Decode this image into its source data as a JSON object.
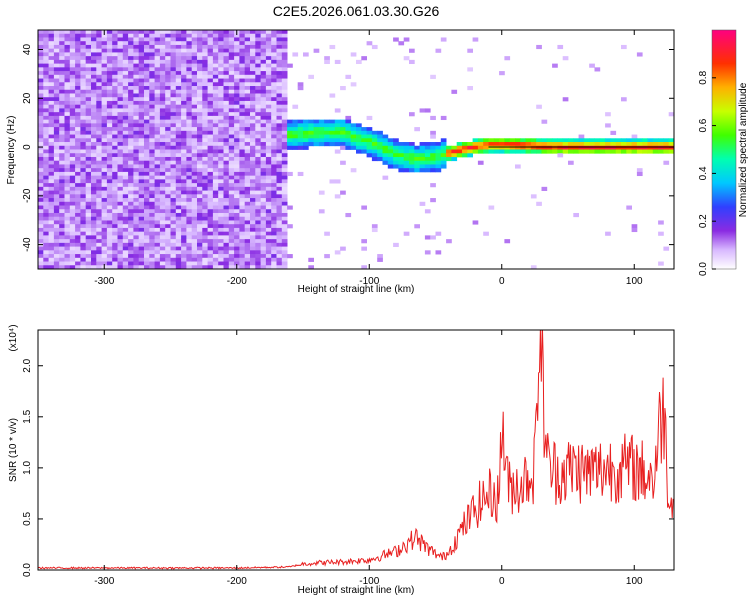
{
  "title": "C2E5.2026.061.03.30.G26",
  "chart_data": [
    {
      "type": "heatmap",
      "title": "C2E5.2026.061.03.30.G26",
      "xlabel": "Height of straight line (km)",
      "ylabel": "Frequency (Hz)",
      "xlim": [
        -350,
        130
      ],
      "ylim": [
        -50,
        48
      ],
      "xticks": [
        -300,
        -200,
        -100,
        0,
        100
      ],
      "yticks": [
        -40,
        -20,
        0,
        20,
        40
      ],
      "colorbar": {
        "label": "Normalized spectral amplitude",
        "range": [
          0,
          1
        ],
        "ticks": [
          0.0,
          0.2,
          0.4,
          0.6,
          0.8
        ]
      },
      "ridge": {
        "description_points": [
          {
            "x": -160,
            "y": 5
          },
          {
            "x": -140,
            "y": 6
          },
          {
            "x": -120,
            "y": 6
          },
          {
            "x": -100,
            "y": 2
          },
          {
            "x": -80,
            "y": -3
          },
          {
            "x": -65,
            "y": -5
          },
          {
            "x": -50,
            "y": -4
          },
          {
            "x": -30,
            "y": -1
          },
          {
            "x": -10,
            "y": 1
          },
          {
            "x": 0,
            "y": 1
          },
          {
            "x": 50,
            "y": 0
          },
          {
            "x": 120,
            "y": 0
          }
        ],
        "noise_region_xmax": -160
      }
    },
    {
      "type": "line",
      "xlabel": "Height of straight line (km)",
      "ylabel": "SNR (10 * v/v)",
      "y_multiplier": "(x10⁴)",
      "xlim": [
        -350,
        130
      ],
      "ylim": [
        0,
        2.35
      ],
      "xticks": [
        -300,
        -200,
        -100,
        0,
        100
      ],
      "yticks": [
        0.0,
        0.5,
        1.0,
        1.5,
        2.0
      ],
      "series": [
        {
          "name": "SNR",
          "color": "#e82020",
          "points": [
            [
              -350,
              0.02
            ],
            [
              -300,
              0.02
            ],
            [
              -250,
              0.02
            ],
            [
              -200,
              0.02
            ],
            [
              -160,
              0.03
            ],
            [
              -150,
              0.06
            ],
            [
              -140,
              0.07
            ],
            [
              -120,
              0.08
            ],
            [
              -100,
              0.1
            ],
            [
              -80,
              0.18
            ],
            [
              -65,
              0.32
            ],
            [
              -55,
              0.2
            ],
            [
              -45,
              0.12
            ],
            [
              -40,
              0.18
            ],
            [
              -30,
              0.4
            ],
            [
              -20,
              0.6
            ],
            [
              -10,
              0.75
            ],
            [
              -2,
              0.7
            ],
            [
              0,
              1.5
            ],
            [
              5,
              0.8
            ],
            [
              15,
              0.85
            ],
            [
              25,
              1.0
            ],
            [
              28,
              2.35
            ],
            [
              35,
              1.0
            ],
            [
              45,
              0.95
            ],
            [
              55,
              1.0
            ],
            [
              65,
              0.95
            ],
            [
              80,
              1.0
            ],
            [
              100,
              1.0
            ],
            [
              115,
              0.9
            ],
            [
              122,
              1.7
            ],
            [
              125,
              0.9
            ],
            [
              128,
              0.65
            ],
            [
              130,
              1.05
            ]
          ]
        }
      ]
    }
  ]
}
